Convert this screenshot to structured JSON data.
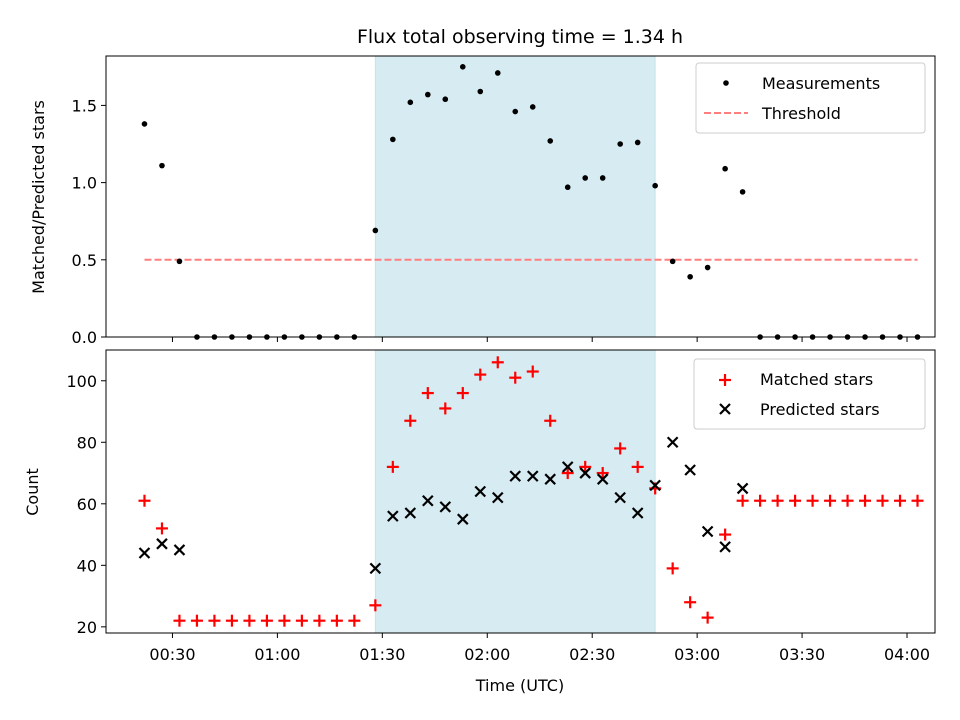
{
  "chart_data": [
    {
      "type": "scatter",
      "title": "Flux total observing time = 1.34 h",
      "xlabel": "",
      "ylabel": "Matched/Predicted stars",
      "ylim": [
        0,
        1.82
      ],
      "yticks": [
        0.0,
        0.5,
        1.0,
        1.5
      ],
      "ytick_labels": [
        "0.0",
        "0.5",
        "1.0",
        "1.5"
      ],
      "grid": false,
      "legend": "top-right",
      "shaded_span": {
        "x_start_min": 88,
        "x_end_min": 168,
        "color": "#add8e6"
      },
      "series": [
        {
          "name": "Measurements",
          "marker": "dot",
          "color": "#000000",
          "x_min": [
            22,
            27,
            32,
            37,
            42,
            47,
            52,
            57,
            62,
            67,
            72,
            77,
            82,
            88,
            93,
            98,
            103,
            108,
            113,
            118,
            123,
            128,
            133,
            138,
            143,
            148,
            153,
            158,
            163,
            168,
            173,
            178,
            183,
            188,
            193,
            198,
            203,
            208,
            213,
            218,
            223,
            228,
            233,
            238,
            243
          ],
          "values": [
            1.38,
            1.11,
            0.49,
            0,
            0,
            0,
            0,
            0,
            0,
            0,
            0,
            0,
            0,
            0.69,
            1.28,
            1.52,
            1.57,
            1.54,
            1.75,
            1.59,
            1.71,
            1.46,
            1.49,
            1.27,
            0.97,
            1.03,
            1.03,
            1.25,
            1.26,
            0.98,
            0.49,
            0.39,
            0.45,
            1.09,
            0.94,
            0,
            0,
            0,
            0,
            0,
            0,
            0,
            0,
            0,
            0
          ]
        },
        {
          "name": "Threshold",
          "marker": "dashed-line",
          "color": "#ff7f7f",
          "x_min": [
            22,
            243
          ],
          "values": [
            0.5,
            0.5
          ]
        }
      ]
    },
    {
      "type": "scatter",
      "title": "",
      "xlabel": "Time (UTC)",
      "ylabel": "Count",
      "ylim": [
        18,
        110
      ],
      "yticks": [
        20,
        40,
        60,
        80,
        100
      ],
      "ytick_labels": [
        "20",
        "40",
        "60",
        "80",
        "100"
      ],
      "xlim_min": [
        11,
        248
      ],
      "xticks_min": [
        30,
        60,
        90,
        120,
        150,
        180,
        210,
        240
      ],
      "xtick_labels": [
        "00:30",
        "01:00",
        "01:30",
        "02:00",
        "02:30",
        "03:00",
        "03:30",
        "04:00"
      ],
      "grid": false,
      "legend": "top-right",
      "shaded_span": {
        "x_start_min": 88,
        "x_end_min": 168,
        "color": "#add8e6"
      },
      "series": [
        {
          "name": "Matched stars",
          "marker": "plus",
          "color": "#ff0000",
          "x_min": [
            22,
            27,
            32,
            37,
            42,
            47,
            52,
            57,
            62,
            67,
            72,
            77,
            82,
            88,
            93,
            98,
            103,
            108,
            113,
            118,
            123,
            128,
            133,
            138,
            143,
            148,
            153,
            158,
            163,
            168,
            173,
            178,
            183,
            188,
            193,
            198,
            203,
            208,
            213,
            218,
            223,
            228,
            233,
            238,
            243
          ],
          "values": [
            61,
            52,
            22,
            22,
            22,
            22,
            22,
            22,
            22,
            22,
            22,
            22,
            22,
            27,
            72,
            87,
            96,
            91,
            96,
            102,
            106,
            101,
            103,
            87,
            70,
            72,
            70,
            78,
            72,
            65,
            39,
            28,
            23,
            50,
            61,
            61,
            61,
            61,
            61,
            61,
            61,
            61,
            61,
            61,
            61
          ]
        },
        {
          "name": "Predicted stars",
          "marker": "x",
          "color": "#000000",
          "x_min": [
            22,
            27,
            32,
            88,
            93,
            98,
            103,
            108,
            113,
            118,
            123,
            128,
            133,
            138,
            143,
            148,
            153,
            158,
            163,
            168,
            173,
            178,
            183,
            188,
            193
          ],
          "values": [
            44,
            47,
            45,
            39,
            56,
            57,
            61,
            59,
            55,
            64,
            62,
            69,
            69,
            68,
            72,
            70,
            68,
            62,
            57,
            66,
            80,
            71,
            51,
            46,
            65
          ]
        }
      ]
    }
  ]
}
